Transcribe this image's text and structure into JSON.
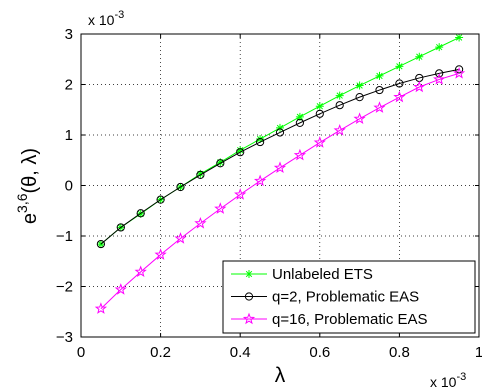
{
  "chart_data": {
    "type": "line",
    "xlabel": "λ",
    "ylabel_base": "e",
    "ylabel_sup": "3,6",
    "ylabel_args": "(θ, λ)",
    "x_multiplier": "x 10",
    "x_multiplier_exp": "-3",
    "y_multiplier": "x 10",
    "y_multiplier_exp": "-3",
    "xlim": [
      0,
      1
    ],
    "ylim": [
      -3,
      3
    ],
    "x_ticks": [
      0,
      0.2,
      0.4,
      0.6,
      0.8,
      1
    ],
    "x_tick_labels": [
      "0",
      "0.2",
      "0.4",
      "0.6",
      "0.8",
      "1"
    ],
    "y_ticks": [
      -3,
      -2,
      -1,
      0,
      1,
      2,
      3
    ],
    "y_tick_labels": [
      "−3",
      "−2",
      "−1",
      "0",
      "1",
      "2",
      "3"
    ],
    "grid": "dotted",
    "legend_position": "bottom-right",
    "x": [
      0.05,
      0.1,
      0.15,
      0.2,
      0.25,
      0.3,
      0.35,
      0.4,
      0.45,
      0.5,
      0.55,
      0.6,
      0.65,
      0.7,
      0.75,
      0.8,
      0.85,
      0.9,
      0.95
    ],
    "series": [
      {
        "name": "Unlabeled ETS",
        "color": "#00ff00",
        "marker": "asterisk",
        "values": [
          -1.16,
          -0.83,
          -0.56,
          -0.28,
          -0.03,
          0.23,
          0.46,
          0.7,
          0.92,
          1.14,
          1.36,
          1.57,
          1.78,
          1.98,
          2.17,
          2.36,
          2.55,
          2.74,
          2.93
        ]
      },
      {
        "name": "q=2, Problematic EAS",
        "color": "#000000",
        "marker": "circle",
        "values": [
          -1.16,
          -0.83,
          -0.55,
          -0.28,
          -0.03,
          0.21,
          0.44,
          0.66,
          0.86,
          1.05,
          1.24,
          1.42,
          1.59,
          1.75,
          1.89,
          2.02,
          2.13,
          2.22,
          2.3
        ]
      },
      {
        "name": "q=16, Problematic EAS",
        "color": "#ff00ff",
        "marker": "star",
        "values": [
          -2.44,
          -2.06,
          -1.71,
          -1.37,
          -1.05,
          -0.75,
          -0.46,
          -0.18,
          0.09,
          0.35,
          0.6,
          0.85,
          1.09,
          1.32,
          1.54,
          1.75,
          1.95,
          2.1,
          2.22
        ]
      }
    ]
  }
}
